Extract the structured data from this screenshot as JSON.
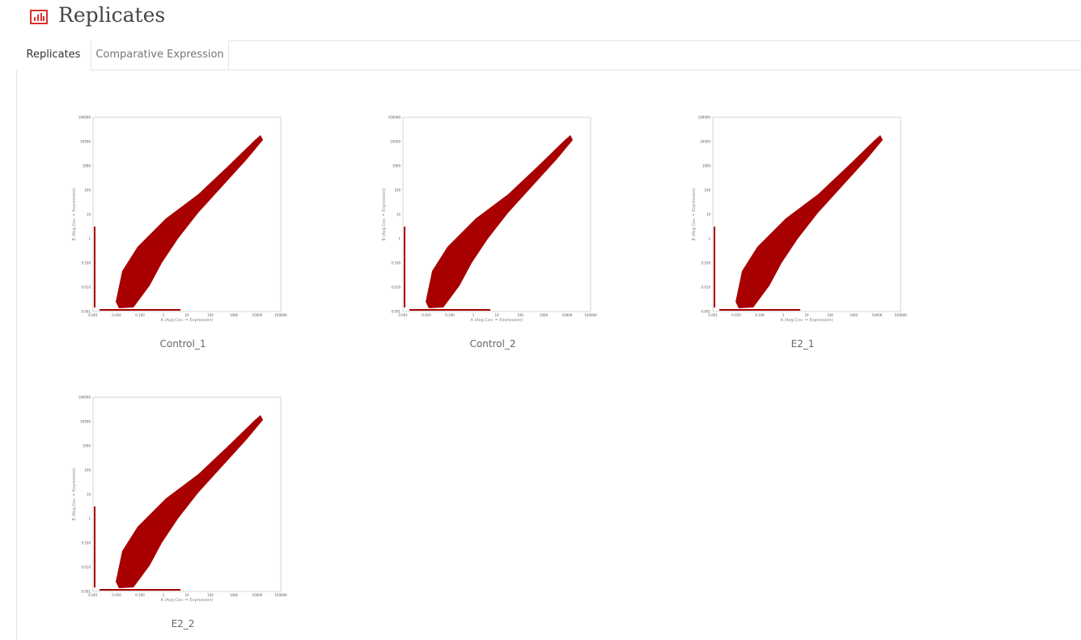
{
  "header": {
    "title": "Replicates"
  },
  "tabs": [
    {
      "label": "Replicates",
      "active": true
    },
    {
      "label": "Comparative Expression",
      "active": false
    }
  ],
  "plot_axes": {
    "x_label": "A (Avg.Cov. = Expression)",
    "y_label": "B (Avg.Cov. = Expression)",
    "x_ticks": [
      "0.001",
      "0.010",
      "0.100",
      "1",
      "10",
      "100",
      "1000",
      "10000",
      "100000"
    ],
    "y_ticks": [
      "100000",
      "10000",
      "1000",
      "100",
      "10",
      "1",
      "0.100",
      "0.010",
      "0.001"
    ]
  },
  "plots": [
    {
      "caption": "Control_1"
    },
    {
      "caption": "Control_2"
    },
    {
      "caption": "E2_1"
    },
    {
      "caption": "E2_2"
    }
  ]
}
